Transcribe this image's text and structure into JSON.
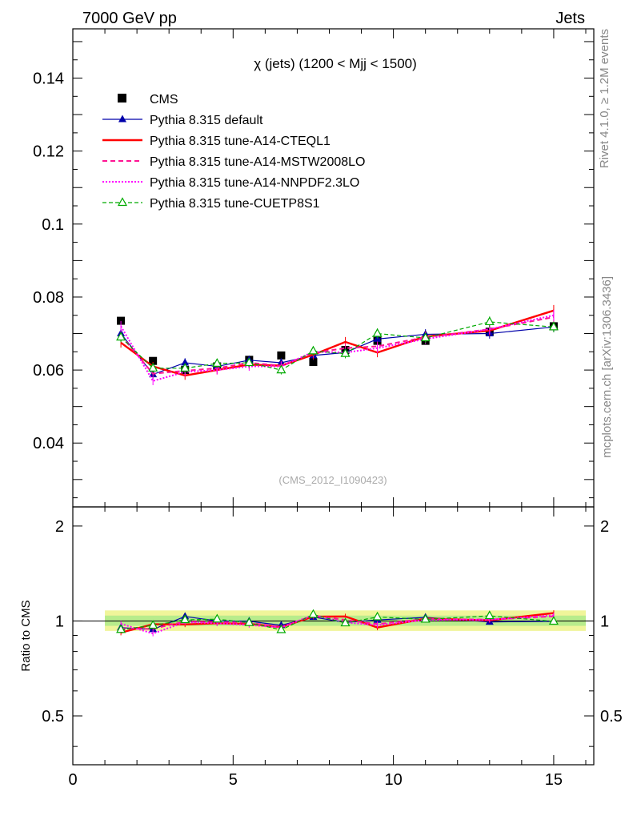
{
  "header": {
    "left": "7000 GeV pp",
    "right": "Jets"
  },
  "side_labels": {
    "rivet": "Rivet 4.1.0, ≥ 1.2M events",
    "mcplots": "mcplots.cern.ch [arXiv:1306.3436]"
  },
  "chart_data": {
    "type": "line",
    "title": "χ (jets) (1200 < Mjj < 1500)",
    "watermark": "(CMS_2012_I1090423)",
    "x": [
      1.5,
      2.5,
      3.5,
      4.5,
      5.5,
      6.5,
      7.5,
      8.5,
      9.5,
      11,
      13,
      15
    ],
    "xlim": [
      0,
      16.25
    ],
    "xticks": [
      "0",
      "5",
      "10",
      "15"
    ],
    "xtick_values": [
      0,
      5,
      10,
      15
    ],
    "main_ylim": [
      0.0225,
      0.1535
    ],
    "main_yticks": [
      "0.04",
      "0.06",
      "0.08",
      "0.1",
      "0.12",
      "0.14"
    ],
    "main_ytick_values": [
      0.04,
      0.06,
      0.08,
      0.1,
      0.12,
      0.14
    ],
    "ratio_ylabel": "Ratio to CMS",
    "ratio_ylim": [
      0.35,
      2.3
    ],
    "ratio_yticks": [
      "0.5",
      "1",
      "2"
    ],
    "ratio_ytick_values": [
      0.5,
      1,
      2
    ],
    "data": {
      "name": "CMS",
      "color": "#000000",
      "values": [
        0.0735,
        0.0625,
        0.06,
        0.061,
        0.0628,
        0.064,
        0.0622,
        0.0655,
        0.068,
        0.068,
        0.0705,
        0.072
      ]
    },
    "series": [
      {
        "name": "Pythia 8.315 default",
        "color": "#0000aa",
        "style": "solid",
        "marker": "triangle",
        "values": [
          0.07,
          0.0588,
          0.062,
          0.061,
          0.0627,
          0.062,
          0.064,
          0.0648,
          0.0685,
          0.0698,
          0.07,
          0.0718
        ]
      },
      {
        "name": "Pythia 8.315 tune-A14-CTEQL1",
        "color": "#ff0000",
        "style": "solid-thick",
        "marker": "none",
        "values": [
          0.0675,
          0.061,
          0.0585,
          0.06,
          0.0615,
          0.0612,
          0.0642,
          0.0677,
          0.0648,
          0.0692,
          0.0708,
          0.0763
        ]
      },
      {
        "name": "Pythia 8.315 tune-A14-MSTW2008LO",
        "color": "#ff1493",
        "style": "dashed",
        "marker": "none",
        "values": [
          0.0695,
          0.059,
          0.0598,
          0.0605,
          0.062,
          0.0612,
          0.0647,
          0.066,
          0.0665,
          0.069,
          0.0712,
          0.0745
        ]
      },
      {
        "name": "Pythia 8.315 tune-A14-NNPDF2.3LO",
        "color": "#ff00ff",
        "style": "dotted",
        "marker": "none",
        "values": [
          0.072,
          0.057,
          0.0595,
          0.06,
          0.061,
          0.061,
          0.065,
          0.0648,
          0.066,
          0.0685,
          0.0712,
          0.075
        ]
      },
      {
        "name": "Pythia 8.315 tune-CUETP8S1",
        "color": "#00aa00",
        "style": "dashed-thin",
        "marker": "open-triangle",
        "values": [
          0.069,
          0.0605,
          0.0605,
          0.0618,
          0.062,
          0.06,
          0.0652,
          0.0645,
          0.07,
          0.0688,
          0.0732,
          0.0718
        ]
      }
    ],
    "legend_position": "top-left"
  }
}
